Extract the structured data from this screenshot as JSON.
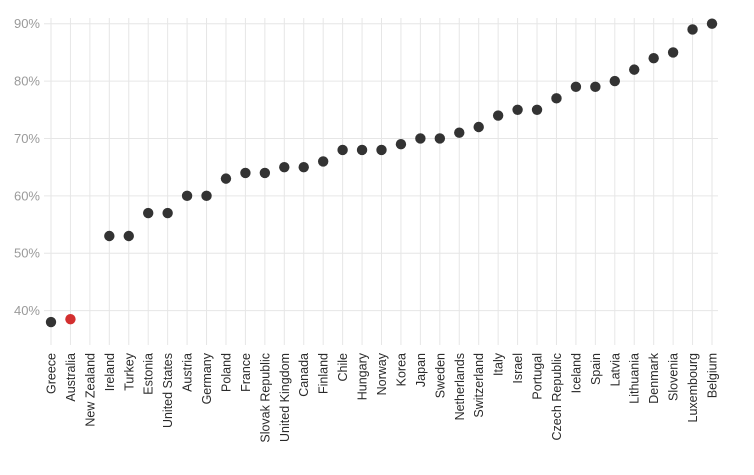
{
  "chart_data": {
    "type": "scatter",
    "title": "",
    "xlabel": "",
    "ylabel": "",
    "ylim": [
      34,
      91
    ],
    "grid": true,
    "legend": "none",
    "point_color": "#333333",
    "highlight_color": "#d32f2f",
    "gridline_color": "#e6e6e6",
    "highlight_category": "Australia",
    "y_ticks": [
      40,
      50,
      60,
      70,
      80,
      90
    ],
    "y_tick_labels": [
      "40%",
      "50%",
      "60%",
      "70%",
      "80%",
      "90%"
    ],
    "categories": [
      "Greece",
      "Australia",
      "New Zealand",
      "Ireland",
      "Turkey",
      "Estonia",
      "United States",
      "Austria",
      "Germany",
      "Poland",
      "France",
      "Slovak Republic",
      "United Kingdom",
      "Canada",
      "Finland",
      "Chile",
      "Hungary",
      "Norway",
      "Korea",
      "Japan",
      "Sweden",
      "Netherlands",
      "Switzerland",
      "Italy",
      "Israel",
      "Portugal",
      "Czech Republic",
      "Iceland",
      "Spain",
      "Latvia",
      "Lithuania",
      "Denmark",
      "Slovenia",
      "Luxembourg",
      "Belgium"
    ],
    "values": [
      38,
      38.5,
      null,
      53,
      53,
      57,
      57,
      60,
      60,
      63,
      64,
      64,
      65,
      65,
      66,
      68,
      68,
      68,
      69,
      70,
      70,
      71,
      72,
      74,
      75,
      75,
      77,
      79,
      79,
      80,
      82,
      84,
      85,
      89,
      90
    ]
  }
}
